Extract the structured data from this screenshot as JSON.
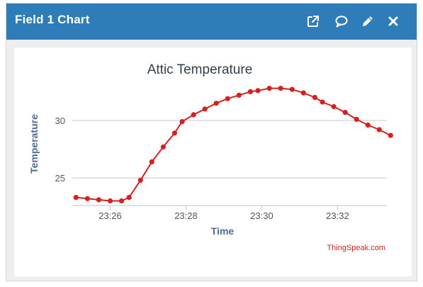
{
  "window": {
    "title": "Field 1 Chart",
    "icons": [
      "external-link-icon",
      "comment-icon",
      "pencil-icon",
      "close-icon"
    ]
  },
  "colors": {
    "header": "#2f7db8",
    "series": "#d62020",
    "title": "#333f48",
    "axis_label": "#4f6d8f",
    "credit": "#cc1f1f"
  },
  "chart_data": {
    "type": "line",
    "title": "Attic Temperature",
    "xlabel": "Time",
    "ylabel": "Temperature",
    "x_ticks": [
      "23:26",
      "23:28",
      "23:30",
      "23:32"
    ],
    "y_ticks": [
      25,
      30
    ],
    "xlim_minutes": [
      25.0,
      33.3
    ],
    "ylim": [
      22.6,
      34.5
    ],
    "grid": "horizontal",
    "credit": "ThingSpeak.com",
    "series": [
      {
        "x": [
          25.1,
          25.4,
          25.7,
          26.0,
          26.3,
          26.5,
          26.8,
          27.1,
          27.4,
          27.7,
          27.9,
          28.2,
          28.5,
          28.8,
          29.1,
          29.4,
          29.7,
          29.9,
          30.2,
          30.5,
          30.8,
          31.1,
          31.4,
          31.6,
          31.9,
          32.2,
          32.5,
          32.8,
          33.1,
          33.4
        ],
        "values": [
          23.3,
          23.2,
          23.1,
          23.0,
          23.0,
          23.3,
          24.8,
          26.4,
          27.7,
          28.9,
          29.9,
          30.5,
          31.0,
          31.5,
          31.9,
          32.2,
          32.5,
          32.6,
          32.8,
          32.8,
          32.7,
          32.4,
          32.0,
          31.6,
          31.2,
          30.7,
          30.1,
          29.6,
          29.2,
          28.7
        ]
      }
    ]
  }
}
